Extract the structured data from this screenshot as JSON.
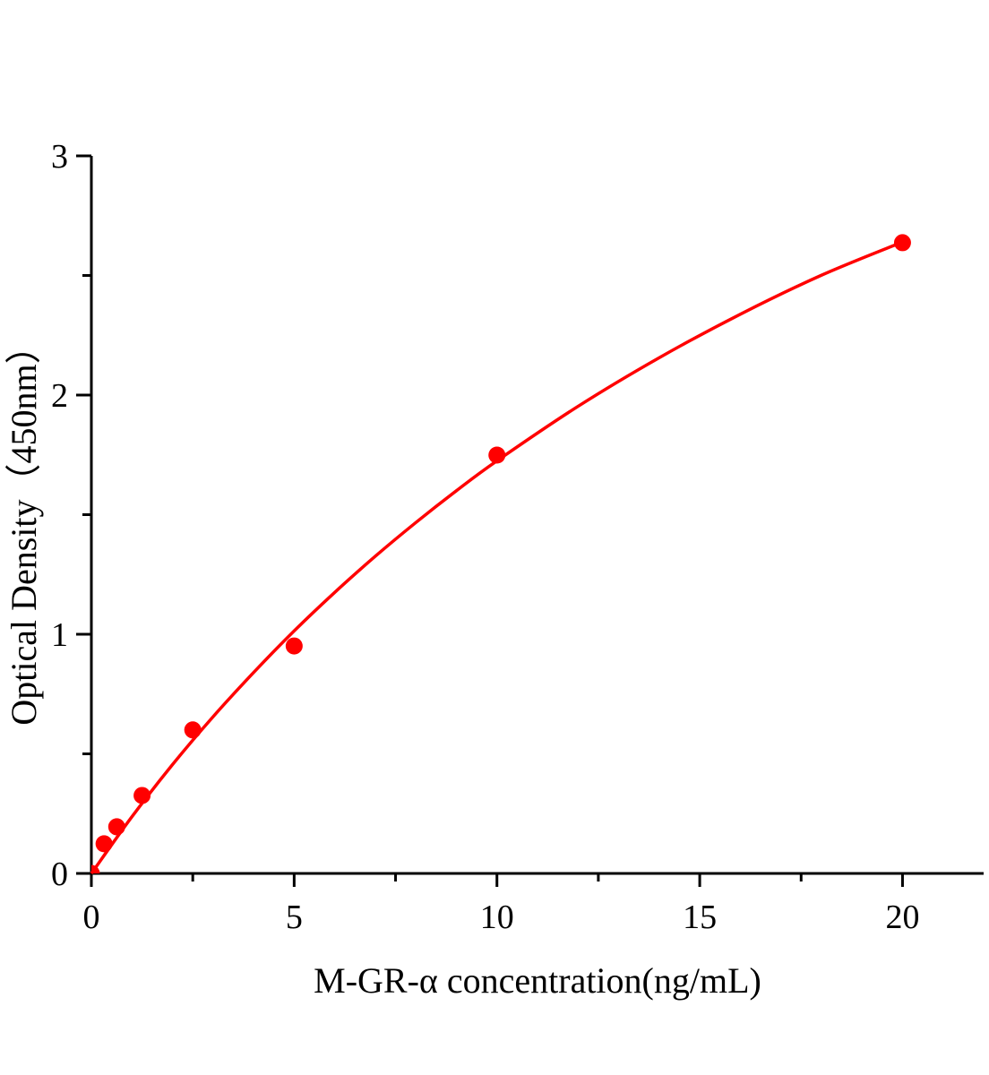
{
  "chart_data": {
    "type": "scatter",
    "xlabel": "M-GR-α concentration(ng/mL)",
    "ylabel": "Optical Density（450nm）",
    "xlim": [
      0,
      22
    ],
    "ylim": [
      0,
      3
    ],
    "x_ticks": [
      0,
      5,
      10,
      15,
      20
    ],
    "x_tick_labels": [
      "0",
      "5",
      "10",
      "15",
      "20"
    ],
    "y_ticks": [
      0,
      1,
      2,
      3
    ],
    "y_tick_labels": [
      "0",
      "1",
      "2",
      "3"
    ],
    "x_minor_step": 2.5,
    "y_minor_step": 0.5,
    "grid": false,
    "color": "#ff0000",
    "series": [
      {
        "kind": "points",
        "x": [
          0,
          0.3125,
          0.625,
          1.25,
          2.5,
          5,
          10,
          20
        ],
        "y": [
          0.0,
          0.124,
          0.195,
          0.326,
          0.6,
          0.951,
          1.749,
          2.637
        ]
      },
      {
        "kind": "fitted-curve",
        "x": [
          0,
          1,
          2,
          3,
          4,
          5,
          6,
          7,
          8,
          9,
          10,
          12,
          14,
          16,
          18,
          20
        ],
        "y": [
          0,
          0.237,
          0.455,
          0.655,
          0.84,
          1.014,
          1.175,
          1.326,
          1.467,
          1.6,
          1.725,
          1.953,
          2.156,
          2.338,
          2.501,
          2.64
        ]
      }
    ]
  }
}
